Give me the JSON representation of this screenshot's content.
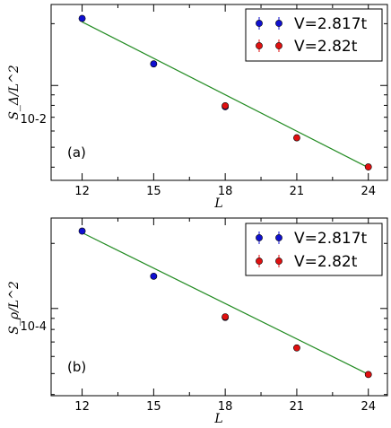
{
  "chart_data": [
    {
      "type": "scatter",
      "panel_label": "(a)",
      "xlabel": "L",
      "ylabel": "S_Δ/L^2",
      "x_ticks": [
        12,
        15,
        18,
        21,
        24
      ],
      "xlim": [
        10.7,
        24.8
      ],
      "y_scale": "log",
      "y_tick_label": "10-2",
      "y_tick_value": 0.01,
      "series": [
        {
          "name": "V=2.817t",
          "color": "#1010d0",
          "x": [
            12,
            15,
            18
          ],
          "y": [
            0.0212,
            0.01274,
            0.00788
          ]
        },
        {
          "name": "V=2.82t",
          "color": "#e01010",
          "x": [
            18,
            21,
            24
          ],
          "y": [
            0.00796,
            0.00556,
            0.00401
          ]
        }
      ],
      "fit": {
        "color": "#228B22",
        "x": [
          12,
          24
        ],
        "y": [
          0.0204,
          0.00398
        ]
      },
      "legend_position": "top-right"
    },
    {
      "type": "scatter",
      "panel_label": "(b)",
      "xlabel": "L",
      "ylabel": "S_ρ/L^2",
      "x_ticks": [
        12,
        15,
        18,
        21,
        24
      ],
      "xlim": [
        10.7,
        24.8
      ],
      "y_scale": "log",
      "y_tick_label": "10-4",
      "y_tick_value": 0.0001,
      "series": [
        {
          "name": "V=2.817t",
          "color": "#1010d0",
          "x": [
            12,
            15,
            18
          ],
          "y": [
            0.000228,
            0.000141,
            9.09e-05
          ]
        },
        {
          "name": "V=2.82t",
          "color": "#e01010",
          "x": [
            18,
            21,
            24
          ],
          "y": [
            9.15e-05,
            6.57e-05,
            4.95e-05
          ]
        }
      ],
      "fit": {
        "color": "#228B22",
        "x": [
          12,
          24
        ],
        "y": [
          0.000224,
          4.96e-05
        ]
      },
      "legend_position": "top-right"
    }
  ]
}
